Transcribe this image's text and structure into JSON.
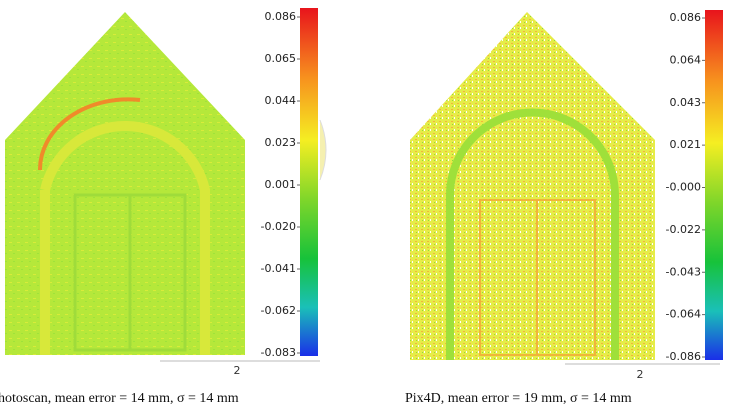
{
  "panels": [
    {
      "ticks": [
        "0.086",
        "0.065",
        "0.044",
        "0.023",
        "0.001",
        "-0.020",
        "-0.041",
        "-0.062",
        "-0.083"
      ],
      "scale_label": "2",
      "caption": "hotoscan, mean error = 14 mm, σ = 14 mm"
    },
    {
      "ticks": [
        "0.086",
        "0.064",
        "0.043",
        "0.021",
        "-0.000",
        "-0.022",
        "-0.043",
        "-0.064",
        "-0.086"
      ],
      "scale_label": "2",
      "caption": "Pix4D, mean error = 19 mm, σ = 14 mm"
    }
  ]
}
